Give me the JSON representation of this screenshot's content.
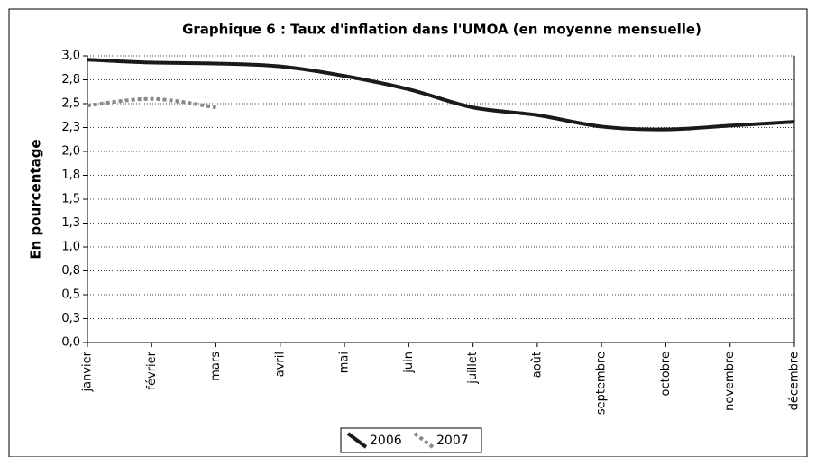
{
  "chart_data": {
    "type": "line",
    "title": "Graphique 6 : Taux d'inflation dans l'UMOA (en moyenne mensuelle)",
    "y_label": "En pourcentage",
    "categories": [
      "janvier",
      "février",
      "mars",
      "avril",
      "mai",
      "juin",
      "juillet",
      "août",
      "septembre",
      "octobre",
      "novembre",
      "décembre"
    ],
    "series": [
      {
        "name": "2006",
        "color": "#1a1a1a",
        "dashed": false,
        "values": [
          2.96,
          2.93,
          2.92,
          2.89,
          2.79,
          2.65,
          2.46,
          2.38,
          2.26,
          2.23,
          2.27,
          2.31
        ]
      },
      {
        "name": "2007",
        "color": "#888888",
        "dashed": true,
        "values": [
          2.48,
          2.55,
          2.46,
          null,
          null,
          null,
          null,
          null,
          null,
          null,
          null,
          null
        ]
      }
    ],
    "ylim": [
      0,
      3
    ],
    "yticks": [
      {
        "value": 0,
        "label": "0,0"
      },
      {
        "value": 0.25,
        "label": "0,3"
      },
      {
        "value": 0.5,
        "label": "0,5"
      },
      {
        "value": 0.75,
        "label": "0,8"
      },
      {
        "value": 1,
        "label": "1,0"
      },
      {
        "value": 1.25,
        "label": "1,3"
      },
      {
        "value": 1.5,
        "label": "1,5"
      },
      {
        "value": 1.75,
        "label": "1,8"
      },
      {
        "value": 2,
        "label": "2,0"
      },
      {
        "value": 2.25,
        "label": "2,3"
      },
      {
        "value": 2.5,
        "label": "2,5"
      },
      {
        "value": 2.75,
        "label": "2,8"
      },
      {
        "value": 3,
        "label": "3,0"
      }
    ],
    "grid": true,
    "legend": "bottom"
  }
}
